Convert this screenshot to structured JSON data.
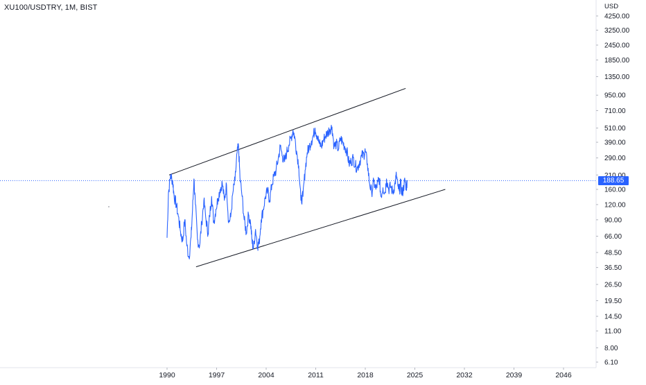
{
  "chart_data": {
    "type": "line",
    "title": "XU100/USDTRY, 1M, BIST",
    "currency": "USD",
    "y_scale": "log",
    "x_ticks": [
      "1990",
      "1997",
      "2004",
      "2011",
      "2018",
      "2025",
      "2032",
      "2039",
      "2046"
    ],
    "y_ticks": [
      4250,
      3250,
      2450,
      1850,
      1350,
      950,
      710,
      510,
      390,
      290,
      210,
      160,
      120,
      90,
      66,
      48.5,
      36.5,
      26.5,
      19.5,
      14.5,
      11,
      8,
      6.1
    ],
    "y_tick_labels": [
      "4250.00",
      "3250.00",
      "2450.00",
      "1850.00",
      "1350.00",
      "950.00",
      "710.00",
      "510.00",
      "390.00",
      "290.00",
      "210.00",
      "160.00",
      "120.00",
      "90.00",
      "66.00",
      "48.50",
      "36.50",
      "26.50",
      "19.50",
      "14.50",
      "11.00",
      "8.00",
      "6.10"
    ],
    "xlim": [
      1990,
      2046
    ],
    "ylim": [
      6.1,
      4250
    ],
    "current_price": 188.65,
    "current_price_label": "188.65",
    "series": [
      {
        "color": "#2962ff",
        "points": [
          [
            1990.0,
            64
          ],
          [
            1990.2,
            150
          ],
          [
            1990.5,
            210
          ],
          [
            1990.8,
            185
          ],
          [
            1991.0,
            140
          ],
          [
            1991.3,
            120
          ],
          [
            1991.6,
            96
          ],
          [
            1991.9,
            72
          ],
          [
            1992.2,
            60
          ],
          [
            1992.5,
            90
          ],
          [
            1992.8,
            55
          ],
          [
            1993.1,
            44
          ],
          [
            1993.4,
            65
          ],
          [
            1993.6,
            110
          ],
          [
            1993.8,
            195
          ],
          [
            1994.0,
            120
          ],
          [
            1994.3,
            62
          ],
          [
            1994.6,
            55
          ],
          [
            1994.9,
            85
          ],
          [
            1995.2,
            130
          ],
          [
            1995.5,
            90
          ],
          [
            1995.8,
            70
          ],
          [
            1996.0,
            95
          ],
          [
            1996.3,
            140
          ],
          [
            1996.6,
            85
          ],
          [
            1996.9,
            110
          ],
          [
            1997.2,
            135
          ],
          [
            1997.5,
            160
          ],
          [
            1997.8,
            180
          ],
          [
            1998.1,
            130
          ],
          [
            1998.4,
            175
          ],
          [
            1998.7,
            85
          ],
          [
            1999.0,
            95
          ],
          [
            1999.3,
            150
          ],
          [
            1999.6,
            190
          ],
          [
            1999.9,
            320
          ],
          [
            2000.1,
            360
          ],
          [
            2000.3,
            200
          ],
          [
            2000.6,
            140
          ],
          [
            2000.9,
            90
          ],
          [
            2001.2,
            70
          ],
          [
            2001.5,
            100
          ],
          [
            2001.8,
            85
          ],
          [
            2002.0,
            60
          ],
          [
            2002.2,
            52
          ],
          [
            2002.5,
            75
          ],
          [
            2002.8,
            55
          ],
          [
            2003.0,
            58
          ],
          [
            2003.3,
            90
          ],
          [
            2003.6,
            110
          ],
          [
            2003.9,
            140
          ],
          [
            2004.2,
            155
          ],
          [
            2004.5,
            130
          ],
          [
            2004.8,
            175
          ],
          [
            2005.1,
            205
          ],
          [
            2005.4,
            230
          ],
          [
            2005.7,
            285
          ],
          [
            2006.0,
            360
          ],
          [
            2006.3,
            300
          ],
          [
            2006.6,
            270
          ],
          [
            2006.9,
            320
          ],
          [
            2007.2,
            370
          ],
          [
            2007.5,
            420
          ],
          [
            2007.8,
            490
          ],
          [
            2008.0,
            440
          ],
          [
            2008.3,
            330
          ],
          [
            2008.6,
            250
          ],
          [
            2008.9,
            130
          ],
          [
            2009.2,
            140
          ],
          [
            2009.5,
            230
          ],
          [
            2009.8,
            320
          ],
          [
            2010.1,
            360
          ],
          [
            2010.4,
            400
          ],
          [
            2010.7,
            450
          ],
          [
            2010.9,
            510
          ],
          [
            2011.2,
            440
          ],
          [
            2011.5,
            380
          ],
          [
            2011.8,
            360
          ],
          [
            2012.1,
            410
          ],
          [
            2012.4,
            440
          ],
          [
            2012.7,
            470
          ],
          [
            2013.0,
            500
          ],
          [
            2013.3,
            520
          ],
          [
            2013.6,
            360
          ],
          [
            2013.9,
            380
          ],
          [
            2014.2,
            340
          ],
          [
            2014.5,
            420
          ],
          [
            2014.8,
            390
          ],
          [
            2015.1,
            360
          ],
          [
            2015.4,
            330
          ],
          [
            2015.7,
            260
          ],
          [
            2016.0,
            270
          ],
          [
            2016.3,
            290
          ],
          [
            2016.6,
            250
          ],
          [
            2016.9,
            240
          ],
          [
            2017.2,
            270
          ],
          [
            2017.5,
            300
          ],
          [
            2017.8,
            310
          ],
          [
            2018.0,
            330
          ],
          [
            2018.3,
            260
          ],
          [
            2018.6,
            180
          ],
          [
            2018.9,
            150
          ],
          [
            2019.2,
            185
          ],
          [
            2019.5,
            160
          ],
          [
            2019.8,
            185
          ],
          [
            2020.0,
            195
          ],
          [
            2020.2,
            140
          ],
          [
            2020.5,
            165
          ],
          [
            2020.8,
            150
          ],
          [
            2021.0,
            195
          ],
          [
            2021.3,
            160
          ],
          [
            2021.6,
            170
          ],
          [
            2021.9,
            150
          ],
          [
            2022.2,
            180
          ],
          [
            2022.4,
            210
          ],
          [
            2022.6,
            170
          ],
          [
            2022.8,
            155
          ],
          [
            2023.0,
            180
          ],
          [
            2023.2,
            145
          ],
          [
            2023.4,
            165
          ],
          [
            2023.6,
            190
          ],
          [
            2023.8,
            165
          ],
          [
            2023.9,
            188.65
          ]
        ]
      }
    ],
    "trendlines": [
      {
        "from": [
          1990.3,
          210
        ],
        "to": [
          2023.7,
          1080
        ]
      },
      {
        "from": [
          1994.1,
          37
        ],
        "to": [
          2029.3,
          160
        ]
      }
    ]
  }
}
